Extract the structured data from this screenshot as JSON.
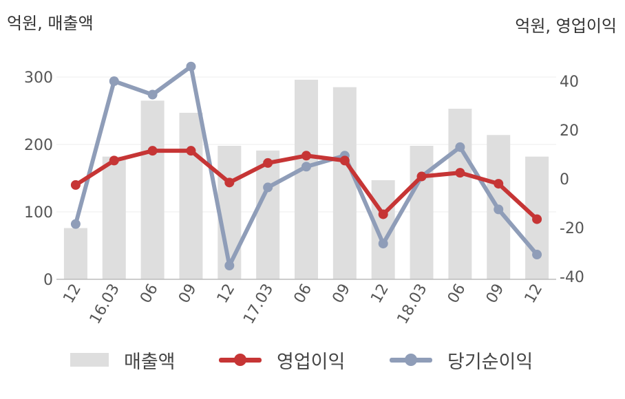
{
  "chart_data": {
    "type": "bar+line",
    "left_axis_label": "억원, 매출액",
    "right_axis_label": "억원, 영업이익",
    "categories": [
      "12",
      "16.03",
      "06",
      "09",
      "12",
      "17.03",
      "06",
      "09",
      "12",
      "18.03",
      "06",
      "09",
      "12"
    ],
    "left_ylim": [
      0,
      300
    ],
    "left_ticks": [
      0,
      100,
      200,
      300
    ],
    "right_ylim": [
      -40,
      40
    ],
    "right_ticks": [
      -40,
      -20,
      0,
      20,
      40
    ],
    "series": [
      {
        "name": "매출액",
        "type": "bar",
        "axis": "left",
        "color": "#dedede",
        "values": [
          76,
          182,
          265,
          247,
          198,
          191,
          296,
          285,
          147,
          198,
          253,
          214,
          182
        ]
      },
      {
        "name": "영업이익",
        "type": "line",
        "axis": "right",
        "color": "#c63535",
        "values": [
          -2.5,
          7.5,
          11.5,
          11.5,
          -1.5,
          6.5,
          9.5,
          7.5,
          -14.5,
          1,
          2.5,
          -2,
          -16.5
        ]
      },
      {
        "name": "당기순이익",
        "type": "line",
        "axis": "right",
        "color": "#8f9db8",
        "values": [
          -18.5,
          40,
          34.5,
          46,
          -35.5,
          -3.5,
          5,
          9.5,
          -26.5,
          1,
          13,
          -12.5,
          -31
        ]
      }
    ],
    "grid": true,
    "legend_position": "bottom"
  }
}
